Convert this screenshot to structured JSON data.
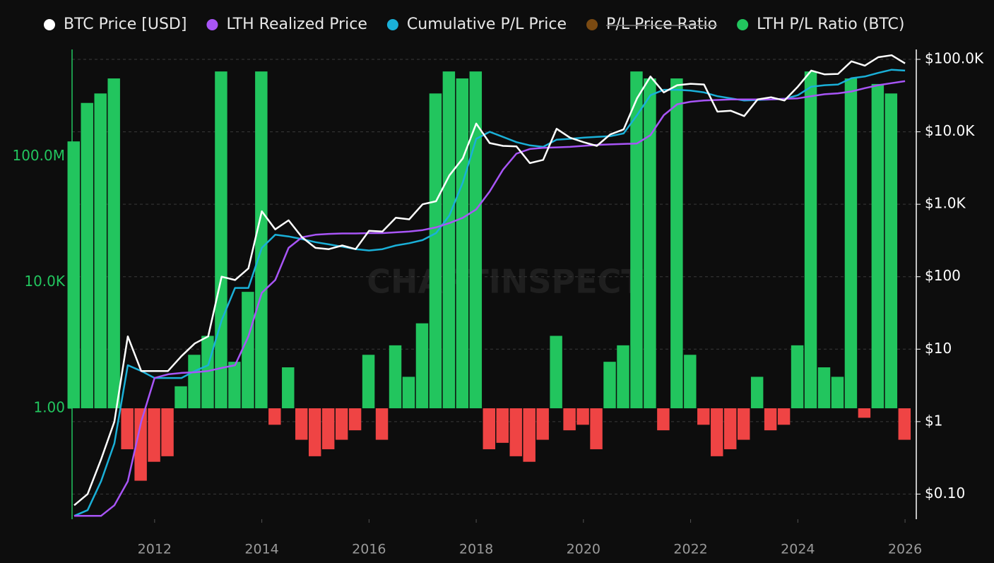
{
  "chart_data": {
    "type": "combo",
    "watermark": "CHARTINSPECT",
    "x": [
      2010.5,
      2010.75,
      2011,
      2011.25,
      2011.5,
      2011.75,
      2012,
      2012.25,
      2012.5,
      2012.75,
      2013,
      2013.25,
      2013.5,
      2013.75,
      2014,
      2014.25,
      2014.5,
      2014.75,
      2015,
      2015.25,
      2015.5,
      2015.75,
      2016,
      2016.25,
      2016.5,
      2016.75,
      2017,
      2017.25,
      2017.5,
      2017.75,
      2018,
      2018.25,
      2018.5,
      2018.75,
      2019,
      2019.25,
      2019.5,
      2019.75,
      2020,
      2020.25,
      2020.5,
      2020.75,
      2021,
      2021.25,
      2021.5,
      2021.75,
      2022,
      2022.25,
      2022.5,
      2022.75,
      2023,
      2023.25,
      2023.5,
      2023.75,
      2024,
      2024.25,
      2024.5,
      2024.75,
      2025,
      2025.25,
      2025.5,
      2025.75,
      2026
    ],
    "xlim": [
      2010.46,
      2026.21
    ],
    "xticks": [
      2012,
      2014,
      2016,
      2018,
      2020,
      2022,
      2024,
      2026
    ],
    "log_scale": true,
    "ylim": [
      0.0003,
      250000000000
    ],
    "yticks": [
      {
        "value": 1,
        "label": "1.00"
      },
      {
        "value": 10000,
        "label": "10.0K"
      },
      {
        "value": 100000000,
        "label": "100.0M"
      }
    ],
    "y2lim": [
      0.045,
      137000
    ],
    "y2ticks": [
      {
        "value": 0.1,
        "label": "$0.10"
      },
      {
        "value": 1,
        "label": "$1"
      },
      {
        "value": 10,
        "label": "$10"
      },
      {
        "value": 100,
        "label": "$100"
      },
      {
        "value": 1000,
        "label": "$1.0K"
      },
      {
        "value": 10000,
        "label": "$10.0K"
      },
      {
        "value": 100000,
        "label": "$100.0K"
      }
    ],
    "grid": true,
    "legend": "top",
    "baseline": 1,
    "series": [
      {
        "name": "LTH P/L Ratio (BTC)",
        "type": "bar",
        "color": "#22c55e",
        "negative_color": "#ef4444",
        "values": [
          300000000,
          5000000000,
          10000000000,
          30000000000,
          0.05,
          0.005,
          0.02,
          0.03,
          5,
          50,
          200,
          50000000000,
          30,
          5000,
          50000000000,
          0.3,
          20,
          0.1,
          0.03,
          0.05,
          0.1,
          0.2,
          50,
          0.1,
          100,
          10,
          500,
          10000000000,
          50000000000,
          30000000000,
          50000000000,
          0.05,
          0.08,
          0.03,
          0.02,
          0.1,
          200,
          0.2,
          0.3,
          0.05,
          30,
          100,
          50000000000,
          30000000000,
          0.2,
          30000000000,
          50,
          0.3,
          0.03,
          0.05,
          0.1,
          10,
          0.2,
          0.3,
          100,
          50000000000,
          20,
          10,
          30000000000,
          0.5,
          20000000000,
          10000000000,
          0.1
        ]
      },
      {
        "name": "BTC Price [USD]",
        "type": "line",
        "axis": "y2",
        "color": "#ffffff",
        "values": [
          0.07,
          0.1,
          0.3,
          1,
          15,
          5,
          5,
          5,
          8,
          12,
          15,
          100,
          90,
          130,
          800,
          450,
          600,
          350,
          250,
          240,
          270,
          240,
          430,
          420,
          650,
          620,
          1000,
          1100,
          2500,
          4300,
          13000,
          7000,
          6400,
          6300,
          3700,
          4100,
          11000,
          8300,
          7200,
          6400,
          9200,
          10800,
          29000,
          58000,
          35000,
          44000,
          46000,
          45000,
          19000,
          19500,
          16500,
          28000,
          30000,
          27000,
          42000,
          70000,
          62000,
          63000,
          94000,
          82000,
          107000,
          114000,
          88000
        ]
      },
      {
        "name": "LTH Realized Price",
        "type": "line",
        "axis": "y2",
        "color": "#a855f7",
        "values": [
          0.05,
          0.05,
          0.05,
          0.07,
          0.15,
          1,
          4,
          4.5,
          4.7,
          4.8,
          5,
          5.5,
          6,
          15,
          60,
          90,
          250,
          350,
          380,
          390,
          395,
          395,
          400,
          400,
          410,
          420,
          440,
          480,
          550,
          650,
          850,
          1500,
          3000,
          5000,
          5800,
          6000,
          6100,
          6200,
          6400,
          6600,
          6700,
          6800,
          6900,
          9000,
          17000,
          24000,
          26000,
          27000,
          27500,
          28000,
          28000,
          28000,
          28000,
          28500,
          29000,
          31000,
          33000,
          34000,
          36000,
          40000,
          44000,
          47000,
          50000
        ]
      },
      {
        "name": "Cumulative P/L Price",
        "type": "line",
        "axis": "y2",
        "color": "#1ab0d8",
        "values": [
          0.05,
          0.06,
          0.15,
          0.5,
          6,
          5,
          4,
          4,
          4,
          5,
          6,
          25,
          70,
          70,
          250,
          380,
          360,
          330,
          300,
          280,
          260,
          240,
          230,
          240,
          270,
          290,
          320,
          400,
          700,
          2000,
          8000,
          10000,
          8500,
          7200,
          6500,
          6200,
          7800,
          8000,
          8300,
          8500,
          8700,
          9500,
          17000,
          32000,
          38000,
          38000,
          37000,
          35000,
          31000,
          29000,
          27000,
          27500,
          28000,
          28500,
          32000,
          42000,
          44000,
          45000,
          55000,
          58000,
          65000,
          72000,
          70000
        ]
      },
      {
        "name": "P/L Price Ratio",
        "type": "line",
        "color": "#7a4a12",
        "hidden": true
      }
    ],
    "legend_order": [
      1,
      2,
      3,
      4,
      0
    ]
  }
}
